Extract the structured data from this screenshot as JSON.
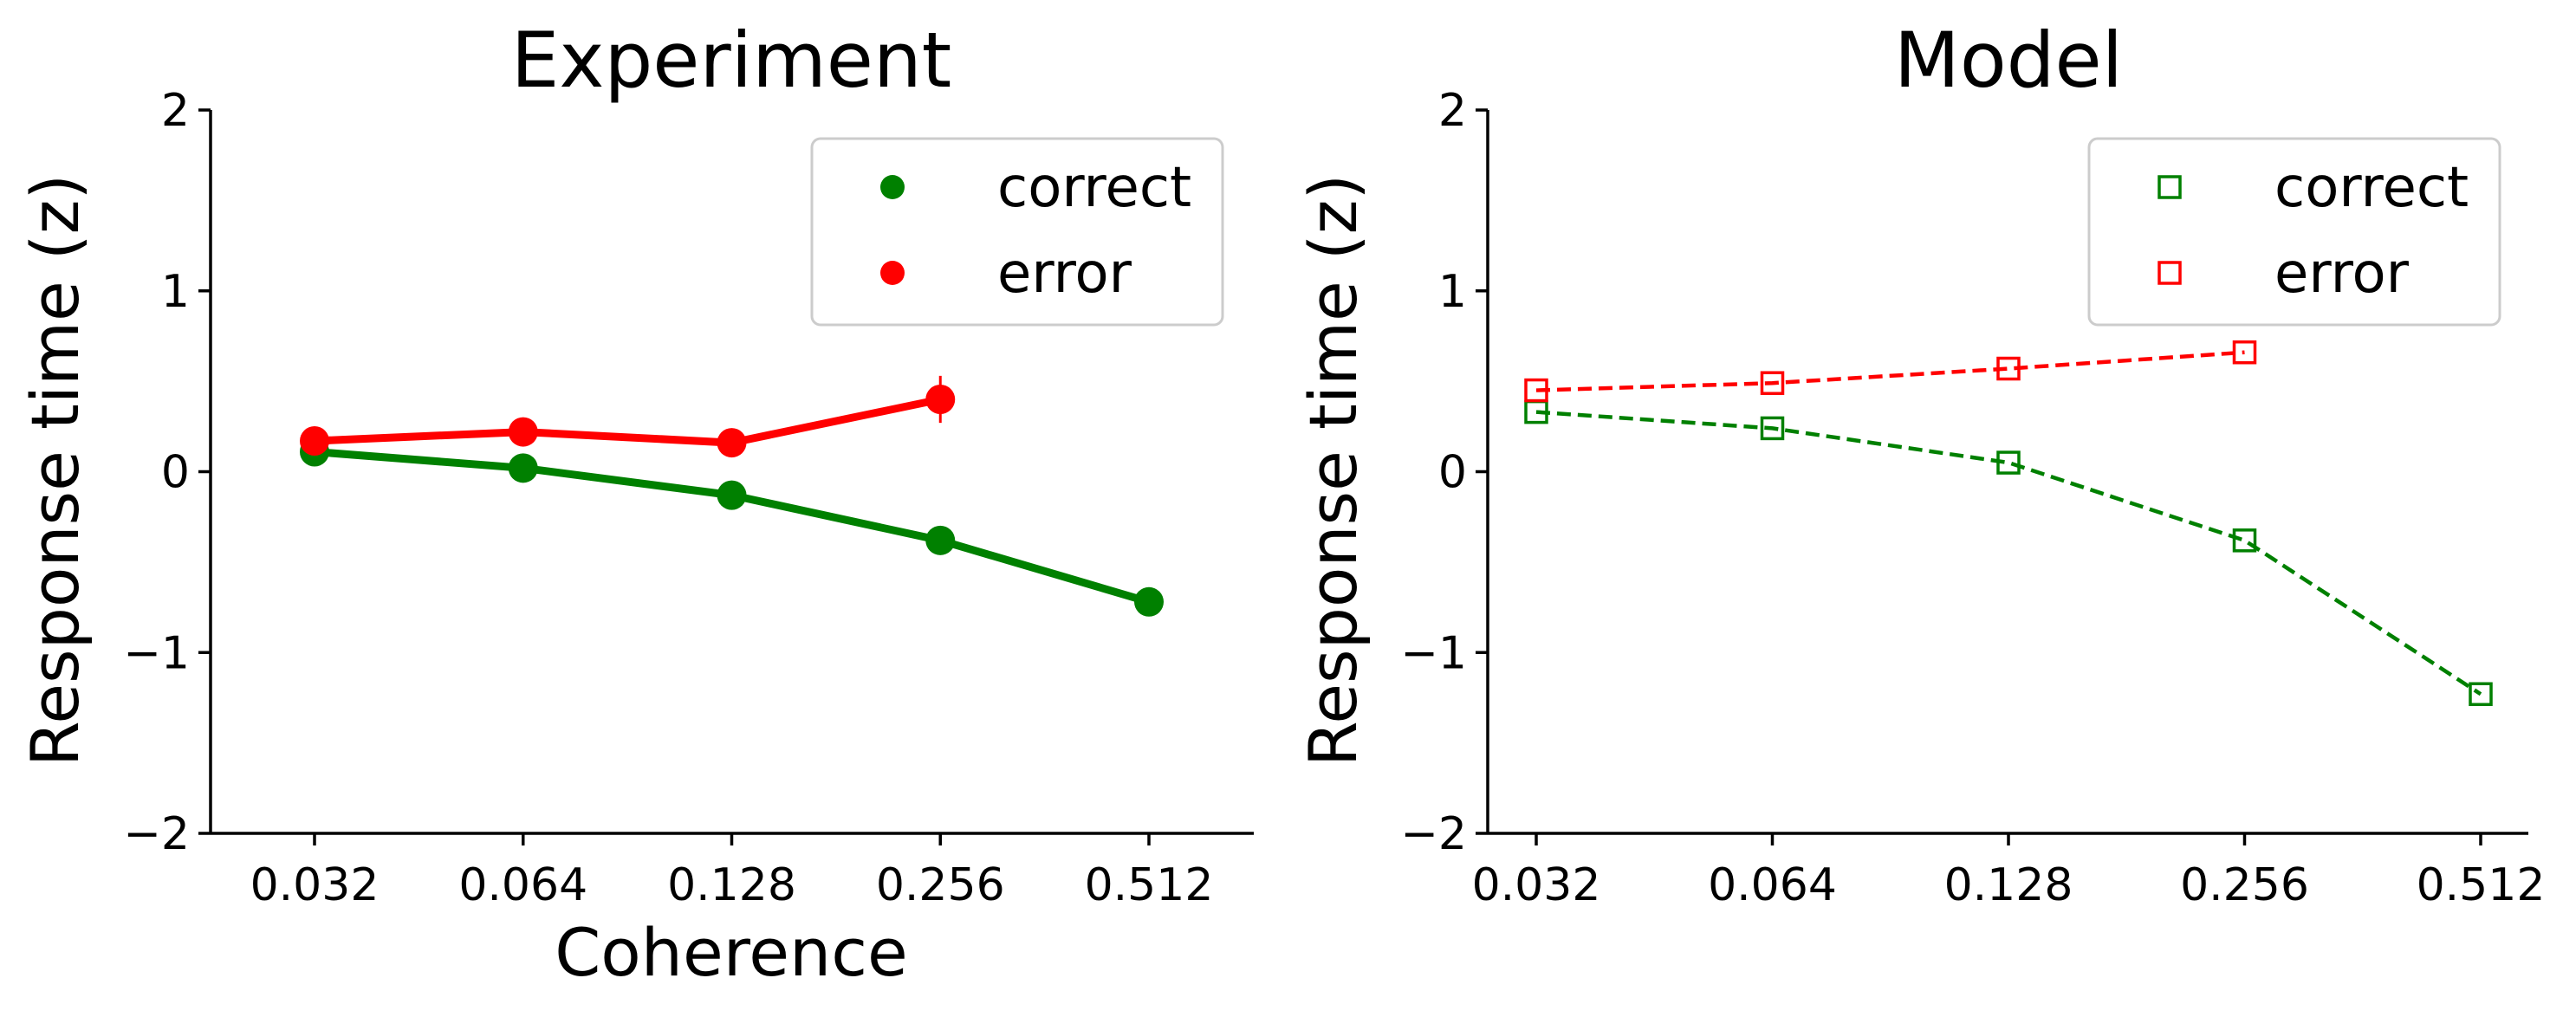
{
  "chart_data": [
    {
      "type": "line",
      "title": "Experiment",
      "xlabel": "Coherence",
      "ylabel": "Response time (z)",
      "x_scale": "log",
      "x": [
        0.032,
        0.064,
        0.128,
        0.256,
        0.512
      ],
      "x_tick_labels": [
        "0.032",
        "0.064",
        "0.128",
        "0.256",
        "0.512"
      ],
      "ylim": [
        -2,
        2
      ],
      "y_ticks": [
        -2,
        -1,
        0,
        1,
        2
      ],
      "y_tick_labels": [
        "−2",
        "−1",
        "0",
        "1",
        "2"
      ],
      "grid": false,
      "legend": {
        "placement": "top-right",
        "entries": [
          "correct",
          "error"
        ]
      },
      "series": [
        {
          "name": "correct",
          "color": "#008000",
          "line_style": "solid",
          "marker": "filled-circle",
          "x": [
            0.032,
            0.064,
            0.128,
            0.256,
            0.512
          ],
          "y": [
            0.11,
            0.02,
            -0.13,
            -0.38,
            -0.72
          ],
          "yerr": [
            0.0,
            0.0,
            0.0,
            0.0,
            0.0
          ]
        },
        {
          "name": "error",
          "color": "#ff0000",
          "line_style": "solid",
          "marker": "filled-circle",
          "x": [
            0.032,
            0.064,
            0.128,
            0.256
          ],
          "y": [
            0.17,
            0.22,
            0.16,
            0.4
          ],
          "yerr": [
            0.02,
            0.02,
            0.04,
            0.13
          ]
        }
      ]
    },
    {
      "type": "line",
      "title": "Model",
      "xlabel": "",
      "ylabel": "Response time (z)",
      "x_scale": "log",
      "x": [
        0.032,
        0.064,
        0.128,
        0.256,
        0.512
      ],
      "x_tick_labels": [
        "0.032",
        "0.064",
        "0.128",
        "0.256",
        "0.512"
      ],
      "ylim": [
        -2,
        2
      ],
      "y_ticks": [
        -2,
        -1,
        0,
        1,
        2
      ],
      "y_tick_labels": [
        "−2",
        "−1",
        "0",
        "1",
        "2"
      ],
      "grid": false,
      "legend": {
        "placement": "top-right",
        "entries": [
          "correct",
          "error"
        ]
      },
      "series": [
        {
          "name": "correct",
          "color": "#008000",
          "line_style": "dashed",
          "marker": "open-square",
          "x": [
            0.032,
            0.064,
            0.128,
            0.256,
            0.512
          ],
          "y": [
            0.33,
            0.24,
            0.05,
            -0.38,
            -1.23
          ]
        },
        {
          "name": "error",
          "color": "#ff0000",
          "line_style": "dashed",
          "marker": "open-square",
          "x": [
            0.032,
            0.064,
            0.128,
            0.256
          ],
          "y": [
            0.45,
            0.49,
            0.57,
            0.66
          ]
        }
      ]
    }
  ]
}
